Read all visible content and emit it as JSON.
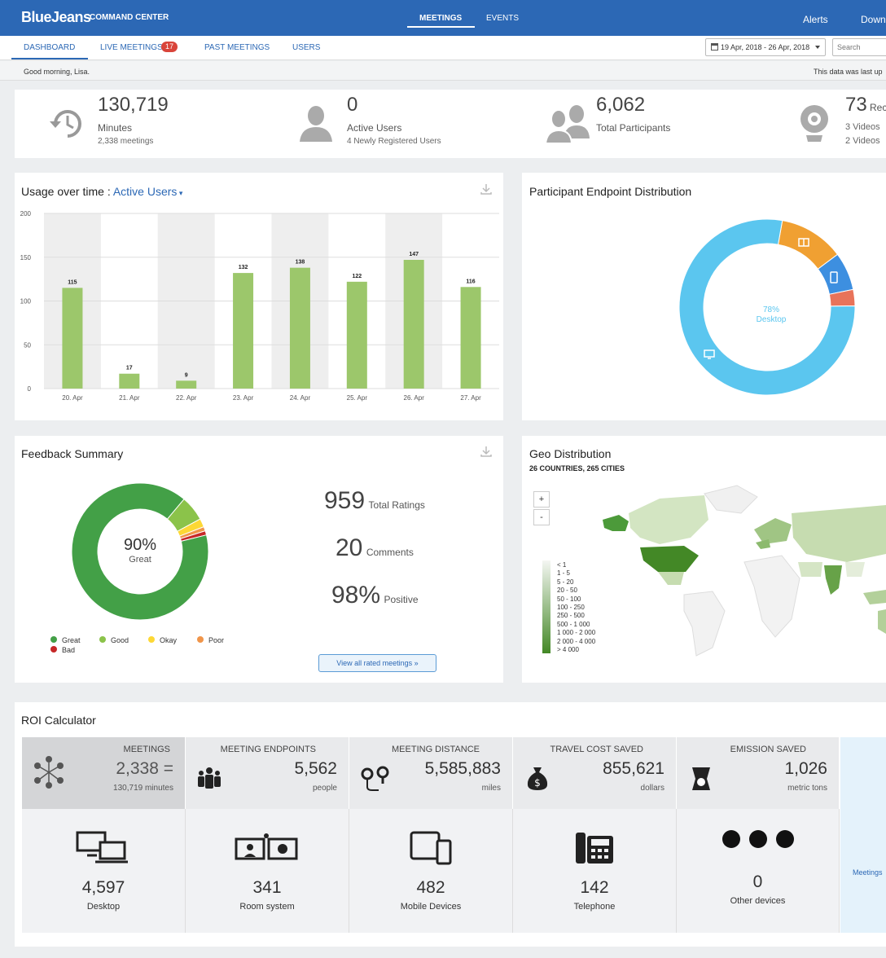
{
  "header": {
    "brand": "BlueJeans",
    "product": "COMMAND CENTER",
    "nav": [
      "MEETINGS",
      "EVENTS"
    ],
    "right": [
      "Alerts",
      "Down"
    ]
  },
  "subnav": {
    "tabs": [
      "DASHBOARD",
      "LIVE MEETINGS",
      "PAST MEETINGS",
      "USERS"
    ],
    "live_count": "17",
    "date_range": "19 Apr, 2018 - 26 Apr, 2018",
    "search_placeholder": "Search"
  },
  "greeting": "Good morning, Lisa.",
  "data_note": "This data was last up",
  "stats": {
    "minutes": {
      "value": "130,719",
      "label": "Minutes",
      "sub": "2,338 meetings"
    },
    "active": {
      "value": "0",
      "label": "Active Users",
      "sub": "4 Newly Registered Users"
    },
    "participants": {
      "value": "6,062",
      "label": "Total Participants"
    },
    "recordings": {
      "value": "73",
      "label": "Rec",
      "sub1": "3 Videos",
      "sub2": "2 Videos"
    }
  },
  "usage": {
    "title": "Usage over time : ",
    "metric": "Active Users"
  },
  "chart_data": {
    "type": "bar",
    "categories": [
      "20. Apr",
      "21. Apr",
      "22. Apr",
      "23. Apr",
      "24. Apr",
      "25. Apr",
      "26. Apr",
      "27. Apr"
    ],
    "values": [
      115,
      17,
      9,
      132,
      138,
      122,
      147,
      116
    ],
    "ylim": [
      0,
      200
    ],
    "yticks": [
      0,
      50,
      100,
      150,
      200
    ],
    "color": "#9cc76b"
  },
  "endpoint": {
    "title": "Participant Endpoint Distribution",
    "center_pct": "78%",
    "center_label": "Desktop",
    "slices": [
      {
        "name": "Desktop",
        "value": 78,
        "color": "#5bc6ef"
      },
      {
        "name": "Room",
        "value": 12,
        "color": "#f0a032"
      },
      {
        "name": "Mobile",
        "value": 7,
        "color": "#3d8fe0"
      },
      {
        "name": "Other",
        "value": 3,
        "color": "#e8735a"
      }
    ]
  },
  "feedback": {
    "title": "Feedback Summary",
    "center_pct": "90%",
    "center_label": "Great",
    "slices": [
      {
        "name": "Great",
        "value": 90,
        "color": "#43a047"
      },
      {
        "name": "Good",
        "value": 6,
        "color": "#8bc34a"
      },
      {
        "name": "Okay",
        "value": 2,
        "color": "#fdd835"
      },
      {
        "name": "Poor",
        "value": 1,
        "color": "#f0954a"
      },
      {
        "name": "Bad",
        "value": 1,
        "color": "#c62828"
      }
    ],
    "ratings_value": "959",
    "ratings_label": "Total Ratings",
    "comments_value": "20",
    "comments_label": "Comments",
    "positive_value": "98%",
    "positive_label": "Positive",
    "button": "View all rated meetings »"
  },
  "geo": {
    "title": "Geo Distribution",
    "subtitle": "26 COUNTRIES, 265 CITIES",
    "zoom_in": "+",
    "zoom_out": "-",
    "legend": [
      "< 1",
      "1 - 5",
      "5 - 20",
      "20 - 50",
      "50 - 100",
      "100 - 250",
      "250 - 500",
      "500 - 1 000",
      "1 000 - 2 000",
      "2 000 - 4 000",
      "> 4 000"
    ],
    "legend_colors": [
      "#f4f6f2",
      "#e4edda",
      "#d5e5c5",
      "#c6dcb0",
      "#b3d09a",
      "#a0c584",
      "#8cba6e",
      "#79ae5a",
      "#67a248",
      "#559536",
      "#438826"
    ]
  },
  "roi": {
    "title": "ROI Calculator",
    "top": [
      {
        "head": "MEETINGS",
        "value": "2,338 =",
        "unit": "130,719 minutes"
      },
      {
        "head": "MEETING ENDPOINTS",
        "value": "5,562",
        "unit": "people"
      },
      {
        "head": "MEETING DISTANCE",
        "value": "5,585,883",
        "unit": "miles"
      },
      {
        "head": "TRAVEL COST SAVED",
        "value": "855,621",
        "unit": "dollars"
      },
      {
        "head": "EMISSION SAVED",
        "value": "1,026",
        "unit": "metric tons"
      }
    ],
    "bottom": [
      {
        "value": "4,597",
        "label": "Desktop"
      },
      {
        "value": "341",
        "label": "Room system"
      },
      {
        "value": "482",
        "label": "Mobile Devices"
      },
      {
        "value": "142",
        "label": "Telephone"
      },
      {
        "value": "0",
        "label": "Other devices"
      }
    ],
    "side_label": "Meetings"
  }
}
